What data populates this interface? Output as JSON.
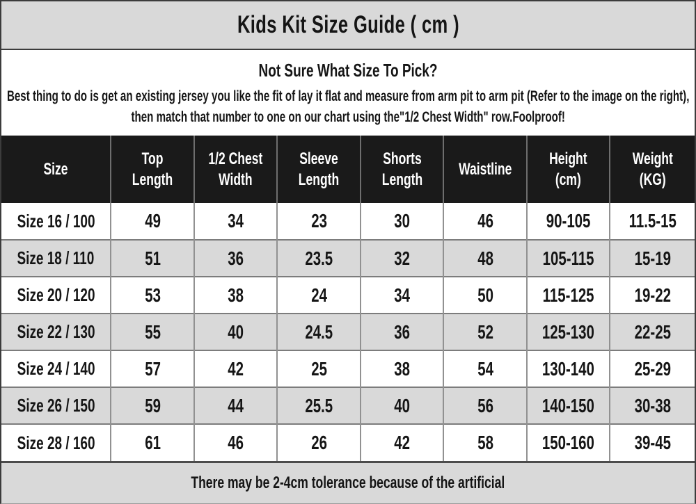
{
  "title": "Kids Kit Size Guide ( cm )",
  "intro": {
    "heading": "Not Sure What Size To Pick?",
    "body": "Best thing to do is get an existing jersey you like the fit of lay it flat and measure from arm pit to arm pit (Refer to the image on the right), then match that number to one on our chart using the\"1/2 Chest Width\" row.Foolproof!"
  },
  "footer_note": "There may be 2-4cm tolerance because of the artificial",
  "colors": {
    "panel_gray": "#d9d9d9",
    "header_black": "#1a1a1a",
    "text": "#151515",
    "header_text": "#ffffff",
    "row_stripe": "#d9d9d9"
  },
  "chart_data": {
    "type": "table",
    "title": "Kids Kit Size Guide ( cm )",
    "units": "cm",
    "columns": [
      "Size",
      "Top Length",
      "1/2 Chest Width",
      "Sleeve Length",
      "Shorts Length",
      "Waistline",
      "Height (cm)",
      "Weight (KG)"
    ],
    "columns_display": [
      "Size",
      "Top\nLength",
      "1/2 Chest\nWidth",
      "Sleeve\nLength",
      "Shorts\nLength",
      "Waistline",
      "Height\n(cm)",
      "Weight\n(KG)"
    ],
    "rows": [
      [
        "Size 16 / 100",
        "49",
        "34",
        "23",
        "30",
        "46",
        "90-105",
        "11.5-15"
      ],
      [
        "Size 18 / 110",
        "51",
        "36",
        "23.5",
        "32",
        "48",
        "105-115",
        "15-19"
      ],
      [
        "Size 20 / 120",
        "53",
        "38",
        "24",
        "34",
        "50",
        "115-125",
        "19-22"
      ],
      [
        "Size 22 / 130",
        "55",
        "40",
        "24.5",
        "36",
        "52",
        "125-130",
        "22-25"
      ],
      [
        "Size 24 / 140",
        "57",
        "42",
        "25",
        "38",
        "54",
        "130-140",
        "25-29"
      ],
      [
        "Size 26 / 150",
        "59",
        "44",
        "25.5",
        "40",
        "56",
        "140-150",
        "30-38"
      ],
      [
        "Size 28 / 160",
        "61",
        "46",
        "26",
        "42",
        "58",
        "150-160",
        "39-45"
      ]
    ],
    "tolerance_note": "There may be 2-4cm tolerance because of the artificial"
  }
}
